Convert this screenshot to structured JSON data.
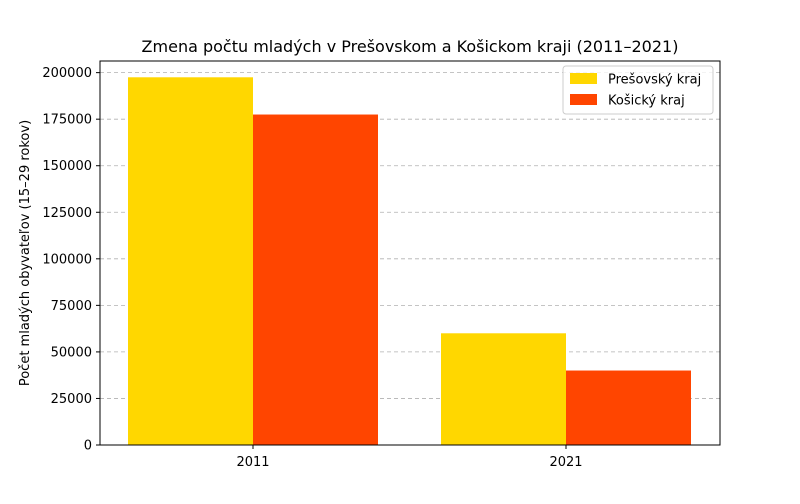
{
  "chart_data": {
    "type": "bar",
    "title": "Zmena počtu mladých v Prešovskom a Košickom kraji (2011–2021)",
    "xlabel": "",
    "ylabel": "Počet mladých obyvateľov (15–29 rokov)",
    "categories": [
      "2011",
      "2021"
    ],
    "series": [
      {
        "name": "Prešovský kraj",
        "values": [
          197500,
          60000
        ],
        "color": "#FFD700"
      },
      {
        "name": "Košický kraj",
        "values": [
          177500,
          40000
        ],
        "color": "#FF4500"
      }
    ],
    "ylim": [
      0,
      206250
    ],
    "yticks": [
      0,
      25000,
      50000,
      75000,
      100000,
      125000,
      150000,
      175000,
      200000
    ],
    "grid": "y-dashed",
    "legend_position": "top-right"
  }
}
